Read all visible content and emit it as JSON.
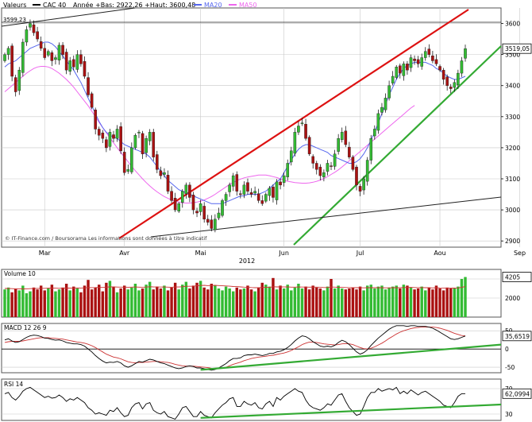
{
  "header": {
    "prefix": "Valeurs",
    "series_name": "CAC 40",
    "range_text": "Année +Bas: 2922,26 +Haut: 3600,48",
    "ma20_label": "MA20",
    "ma50_label": "MA50"
  },
  "footer": {
    "source": "© IT-Finance.com / Boursorama Les informations sont données à titre indicatif",
    "year": "2012"
  },
  "colors": {
    "up": "#33bb33",
    "down": "#aa1111",
    "ma20": "#5566ee",
    "ma50": "#ee66ee",
    "upper_trend": "#dd1111",
    "lower_trend": "#33aa33",
    "macd_signal": "#cc3333",
    "grid": "#c8c8c8",
    "text": "#000000"
  },
  "chart_data": [
    {
      "id": "price",
      "type": "candlestick",
      "title": "CAC 40",
      "ylim": [
        2880,
        3650
      ],
      "yticks": [
        2900,
        3000,
        3100,
        3200,
        3300,
        3400,
        3500,
        3600
      ],
      "xticks": [
        {
          "label": "Mar",
          "day": 11
        },
        {
          "label": "Avr",
          "day": 33
        },
        {
          "label": "Mai",
          "day": 54
        },
        {
          "label": "Jun",
          "day": 77
        },
        {
          "label": "Jul",
          "day": 98
        },
        {
          "label": "Aou",
          "day": 120
        },
        {
          "label": "Sep",
          "day": 142
        }
      ],
      "flags": [
        {
          "label": "3599,23",
          "value": 3599.23
        },
        {
          "label": "3519,05",
          "value": 3519.05
        }
      ],
      "closes": [
        3500,
        3520,
        3430,
        3380,
        3450,
        3540,
        3580,
        3600,
        3570,
        3550,
        3520,
        3490,
        3510,
        3480,
        3490,
        3530,
        3500,
        3450,
        3480,
        3460,
        3500,
        3470,
        3430,
        3370,
        3330,
        3260,
        3240,
        3230,
        3200,
        3250,
        3230,
        3260,
        3190,
        3120,
        3130,
        3200,
        3240,
        3250,
        3180,
        3230,
        3250,
        3170,
        3130,
        3110,
        3120,
        3060,
        3030,
        3000,
        3020,
        3060,
        3080,
        3040,
        3000,
        2990,
        3020,
        2970,
        2960,
        2940,
        2970,
        2990,
        3030,
        3050,
        3080,
        3110,
        3060,
        3050,
        3080,
        3060,
        3050,
        3060,
        3030,
        3020,
        3050,
        3070,
        3040,
        3090,
        3080,
        3110,
        3150,
        3190,
        3250,
        3270,
        3280,
        3230,
        3180,
        3150,
        3130,
        3110,
        3120,
        3150,
        3140,
        3180,
        3230,
        3250,
        3210,
        3170,
        3130,
        3080,
        3060,
        3100,
        3160,
        3230,
        3260,
        3310,
        3330,
        3360,
        3400,
        3430,
        3460,
        3440,
        3470,
        3450,
        3490,
        3480,
        3470,
        3490,
        3510,
        3500,
        3480,
        3470,
        3450,
        3420,
        3400,
        3390,
        3410,
        3440,
        3480,
        3519.05
      ],
      "ma20": [
        3460,
        3470,
        3475,
        3480,
        3490,
        3500,
        3510,
        3520,
        3525,
        3530,
        3535,
        3540,
        3540,
        3535,
        3525,
        3510,
        3495,
        3480,
        3465,
        3450,
        3430,
        3410,
        3385,
        3360,
        3335,
        3310,
        3285,
        3265,
        3250,
        3240,
        3235,
        3230,
        3220,
        3210,
        3205,
        3200,
        3195,
        3190,
        3185,
        3180,
        3170,
        3155,
        3140,
        3125,
        3110,
        3095,
        3085,
        3075,
        3065,
        3060,
        3055,
        3050,
        3045,
        3040,
        3035,
        3030,
        3025,
        3020,
        3020,
        3020,
        3020,
        3025,
        3030,
        3035,
        3040,
        3045,
        3045,
        3050,
        3050,
        3050,
        3050,
        3055,
        3060,
        3070,
        3080,
        3090,
        3100,
        3120,
        3140,
        3160,
        3180,
        3195,
        3205,
        3210,
        3210,
        3205,
        3200,
        3195,
        3190,
        3185,
        3175,
        3170,
        3165,
        3160,
        3155,
        3150,
        3150,
        3155,
        3165,
        3180,
        3200,
        3225,
        3250,
        3280,
        3310,
        3340,
        3370,
        3395,
        3420,
        3440,
        3455,
        3465,
        3470,
        3475,
        3475,
        3475,
        3475,
        3470,
        3465,
        3455,
        3450,
        3440,
        3430,
        3425,
        3420,
        3420,
        3425,
        3430
      ],
      "ma50": [
        3380,
        3390,
        3400,
        3410,
        3420,
        3430,
        3440,
        3448,
        3455,
        3460,
        3462,
        3462,
        3460,
        3455,
        3448,
        3440,
        3430,
        3420,
        3408,
        3395,
        3380,
        3365,
        3350,
        3335,
        3318,
        3300,
        3282,
        3265,
        3248,
        3232,
        3216,
        3200,
        3185,
        3170,
        3155,
        3140,
        3126,
        3113,
        3100,
        3088,
        3077,
        3067,
        3058,
        3050,
        3043,
        3037,
        3032,
        3028,
        3025,
        3023,
        3022,
        3022,
        3023,
        3025,
        3028,
        3032,
        3037,
        3043,
        3050,
        3058,
        3066,
        3074,
        3082,
        3088,
        3094,
        3099,
        3103,
        3106,
        3108,
        3110,
        3112,
        3112,
        3112,
        3110,
        3107,
        3104,
        3100,
        3096,
        3092,
        3090,
        3088,
        3087,
        3086,
        3086,
        3087,
        3089,
        3092,
        3096,
        3101,
        3107,
        3114,
        3121,
        3129,
        3138,
        3148,
        3158,
        3168,
        3178,
        3188,
        3198,
        3208,
        3218,
        3228,
        3238,
        3248,
        3258,
        3268,
        3278,
        3288,
        3298,
        3308,
        3318,
        3328,
        3336
      ]
    },
    {
      "id": "volume",
      "type": "bar",
      "title": "Volume 10",
      "ylim": [
        0,
        5000
      ],
      "yticks": [
        2000,
        4000
      ],
      "flag": {
        "label": "4205",
        "value": 4205
      },
      "values": [
        2900,
        3100,
        2600,
        3000,
        2800,
        3300,
        2500,
        2700,
        3100,
        2900,
        3300,
        2800,
        3000,
        3400,
        2700,
        2900,
        3100,
        3500,
        2800,
        3200,
        3000,
        2600,
        3300,
        3900,
        2900,
        3100,
        3400,
        2700,
        3600,
        3800,
        3200,
        2600,
        3000,
        3300,
        2900,
        3100,
        3500,
        2800,
        3000,
        3400,
        3700,
        2900,
        3200,
        3000,
        3300,
        2800,
        3100,
        3600,
        2900,
        3400,
        3700,
        3000,
        3300,
        3600,
        3800,
        3100,
        2900,
        3500,
        3300,
        3000,
        2800,
        3200,
        3000,
        2700,
        3100,
        2900,
        3000,
        3300,
        2900,
        2700,
        3100,
        3600,
        3400,
        3200,
        4100,
        2900,
        3300,
        3000,
        3400,
        2800,
        3100,
        3500,
        3000,
        3200,
        2900,
        3300,
        3100,
        3000,
        2800,
        3200,
        4000,
        3000,
        3300,
        3000,
        2900,
        3000,
        3100,
        2900,
        3200,
        2800,
        3300,
        3400,
        3000,
        3200,
        3300,
        2900,
        3100,
        3200,
        3300,
        3000,
        3400,
        3300,
        3100,
        2900,
        3000,
        3200,
        2800,
        3100,
        2900,
        3300,
        3000,
        2800,
        3100,
        3000,
        3000,
        3200,
        4000,
        4205
      ],
      "avg": [
        3000,
        3000,
        2980,
        2960,
        2950,
        2960,
        2970,
        2980,
        3000,
        3010,
        3020,
        3020,
        3030,
        3040,
        3030,
        3020,
        3030,
        3050,
        3040,
        3050,
        3060,
        3050,
        3070,
        3100,
        3090,
        3100,
        3120,
        3110,
        3140,
        3170,
        3170,
        3150,
        3140,
        3140,
        3130,
        3140,
        3160,
        3140,
        3130,
        3150,
        3180,
        3170,
        3160,
        3150,
        3160,
        3140,
        3130,
        3160,
        3160,
        3180,
        3230,
        3230,
        3240,
        3280,
        3320,
        3330,
        3300,
        3320,
        3330,
        3310,
        3280,
        3270,
        3240,
        3210,
        3200,
        3170,
        3140,
        3130,
        3100,
        3080,
        3080,
        3110,
        3120,
        3120,
        3180,
        3170,
        3170,
        3160,
        3170,
        3140,
        3140,
        3160,
        3150,
        3150,
        3140,
        3150,
        3140,
        3130,
        3100,
        3100,
        3160,
        3140,
        3130,
        3120,
        3100,
        3090,
        3090,
        3080,
        3090,
        3070,
        3080,
        3090,
        3080,
        3080,
        3080,
        3070,
        3070,
        3080,
        3090,
        3080,
        3100,
        3110,
        3120,
        3100,
        3090,
        3100,
        3080,
        3080,
        3060,
        3080,
        3060,
        3050,
        3050,
        3050,
        3040,
        3060,
        3120,
        3200
      ],
      "daily_split_day": 87,
      "daily_split_label": ""
    },
    {
      "id": "macd",
      "type": "line",
      "title": "MACD 12 26 9",
      "ylim": [
        -65,
        70
      ],
      "yticks": [
        -50,
        0,
        50
      ],
      "flag": {
        "label": "35,6519",
        "value": 35.6519
      },
      "macd": [
        25,
        28,
        22,
        18,
        20,
        26,
        32,
        36,
        38,
        37,
        34,
        30,
        29,
        26,
        24,
        25,
        22,
        18,
        16,
        14,
        14,
        12,
        8,
        0,
        -8,
        -18,
        -26,
        -33,
        -38,
        -36,
        -37,
        -34,
        -38,
        -46,
        -50,
        -46,
        -40,
        -34,
        -36,
        -32,
        -28,
        -30,
        -34,
        -38,
        -40,
        -44,
        -48,
        -52,
        -54,
        -52,
        -48,
        -46,
        -48,
        -52,
        -52,
        -54,
        -56,
        -58,
        -56,
        -52,
        -46,
        -40,
        -32,
        -26,
        -26,
        -24,
        -18,
        -16,
        -16,
        -14,
        -16,
        -18,
        -16,
        -12,
        -12,
        -8,
        -6,
        -2,
        4,
        12,
        22,
        30,
        36,
        34,
        28,
        20,
        14,
        8,
        6,
        8,
        6,
        10,
        18,
        24,
        20,
        12,
        2,
        -8,
        -14,
        -10,
        -2,
        10,
        20,
        30,
        38,
        46,
        54,
        60,
        64,
        64,
        64,
        62,
        64,
        64,
        62,
        62,
        62,
        60,
        57,
        52,
        46,
        40,
        34,
        28,
        26,
        28,
        32,
        35.65
      ],
      "signal": [
        18,
        20,
        21,
        21,
        21,
        22,
        24,
        26,
        28,
        30,
        31,
        31,
        31,
        30,
        29,
        28,
        27,
        25,
        23,
        21,
        19,
        18,
        16,
        13,
        9,
        4,
        -2,
        -8,
        -14,
        -18,
        -22,
        -24,
        -27,
        -31,
        -35,
        -37,
        -38,
        -37,
        -37,
        -36,
        -35,
        -34,
        -34,
        -35,
        -36,
        -37,
        -39,
        -42,
        -44,
        -46,
        -47,
        -47,
        -47,
        -48,
        -49,
        -50,
        -51,
        -53,
        -54,
        -54,
        -52,
        -50,
        -46,
        -42,
        -39,
        -36,
        -32,
        -29,
        -26,
        -24,
        -22,
        -21,
        -20,
        -18,
        -17,
        -15,
        -13,
        -11,
        -8,
        -4,
        1,
        6,
        12,
        16,
        19,
        19,
        18,
        16,
        14,
        13,
        12,
        11,
        12,
        14,
        15,
        14,
        12,
        8,
        4,
        1,
        0,
        2,
        6,
        11,
        16,
        22,
        29,
        35,
        41,
        46,
        50,
        53,
        56,
        58,
        59,
        60,
        60,
        60,
        60,
        59,
        57,
        54,
        51,
        47,
        43,
        40,
        37,
        36
      ],
      "trend": {
        "from": [
          54,
          -57
        ],
        "to": [
          140,
          12
        ]
      }
    },
    {
      "id": "rsi",
      "type": "line",
      "title": "RSI 14",
      "ylim": [
        20,
        85
      ],
      "yticks": [
        30,
        70
      ],
      "flag": {
        "label": "62,0994",
        "value": 62.0994
      },
      "values": [
        62,
        64,
        56,
        52,
        58,
        66,
        70,
        72,
        68,
        64,
        60,
        56,
        58,
        55,
        56,
        60,
        56,
        50,
        54,
        52,
        56,
        52,
        48,
        40,
        36,
        30,
        32,
        30,
        28,
        36,
        34,
        40,
        32,
        26,
        28,
        40,
        46,
        48,
        38,
        46,
        48,
        36,
        32,
        30,
        34,
        26,
        24,
        22,
        30,
        40,
        42,
        34,
        26,
        26,
        34,
        28,
        26,
        24,
        32,
        38,
        44,
        48,
        54,
        56,
        42,
        42,
        50,
        46,
        44,
        48,
        40,
        38,
        46,
        50,
        42,
        56,
        52,
        58,
        62,
        66,
        70,
        66,
        64,
        52,
        44,
        40,
        38,
        36,
        40,
        46,
        44,
        52,
        60,
        62,
        50,
        40,
        34,
        28,
        30,
        42,
        56,
        64,
        64,
        70,
        66,
        68,
        70,
        68,
        72,
        62,
        66,
        62,
        68,
        64,
        60,
        64,
        66,
        62,
        58,
        54,
        50,
        44,
        42,
        40,
        48,
        58,
        62,
        62.1
      ],
      "trend": {
        "from": [
          54,
          24
        ],
        "to": [
          141,
          45
        ]
      }
    }
  ]
}
